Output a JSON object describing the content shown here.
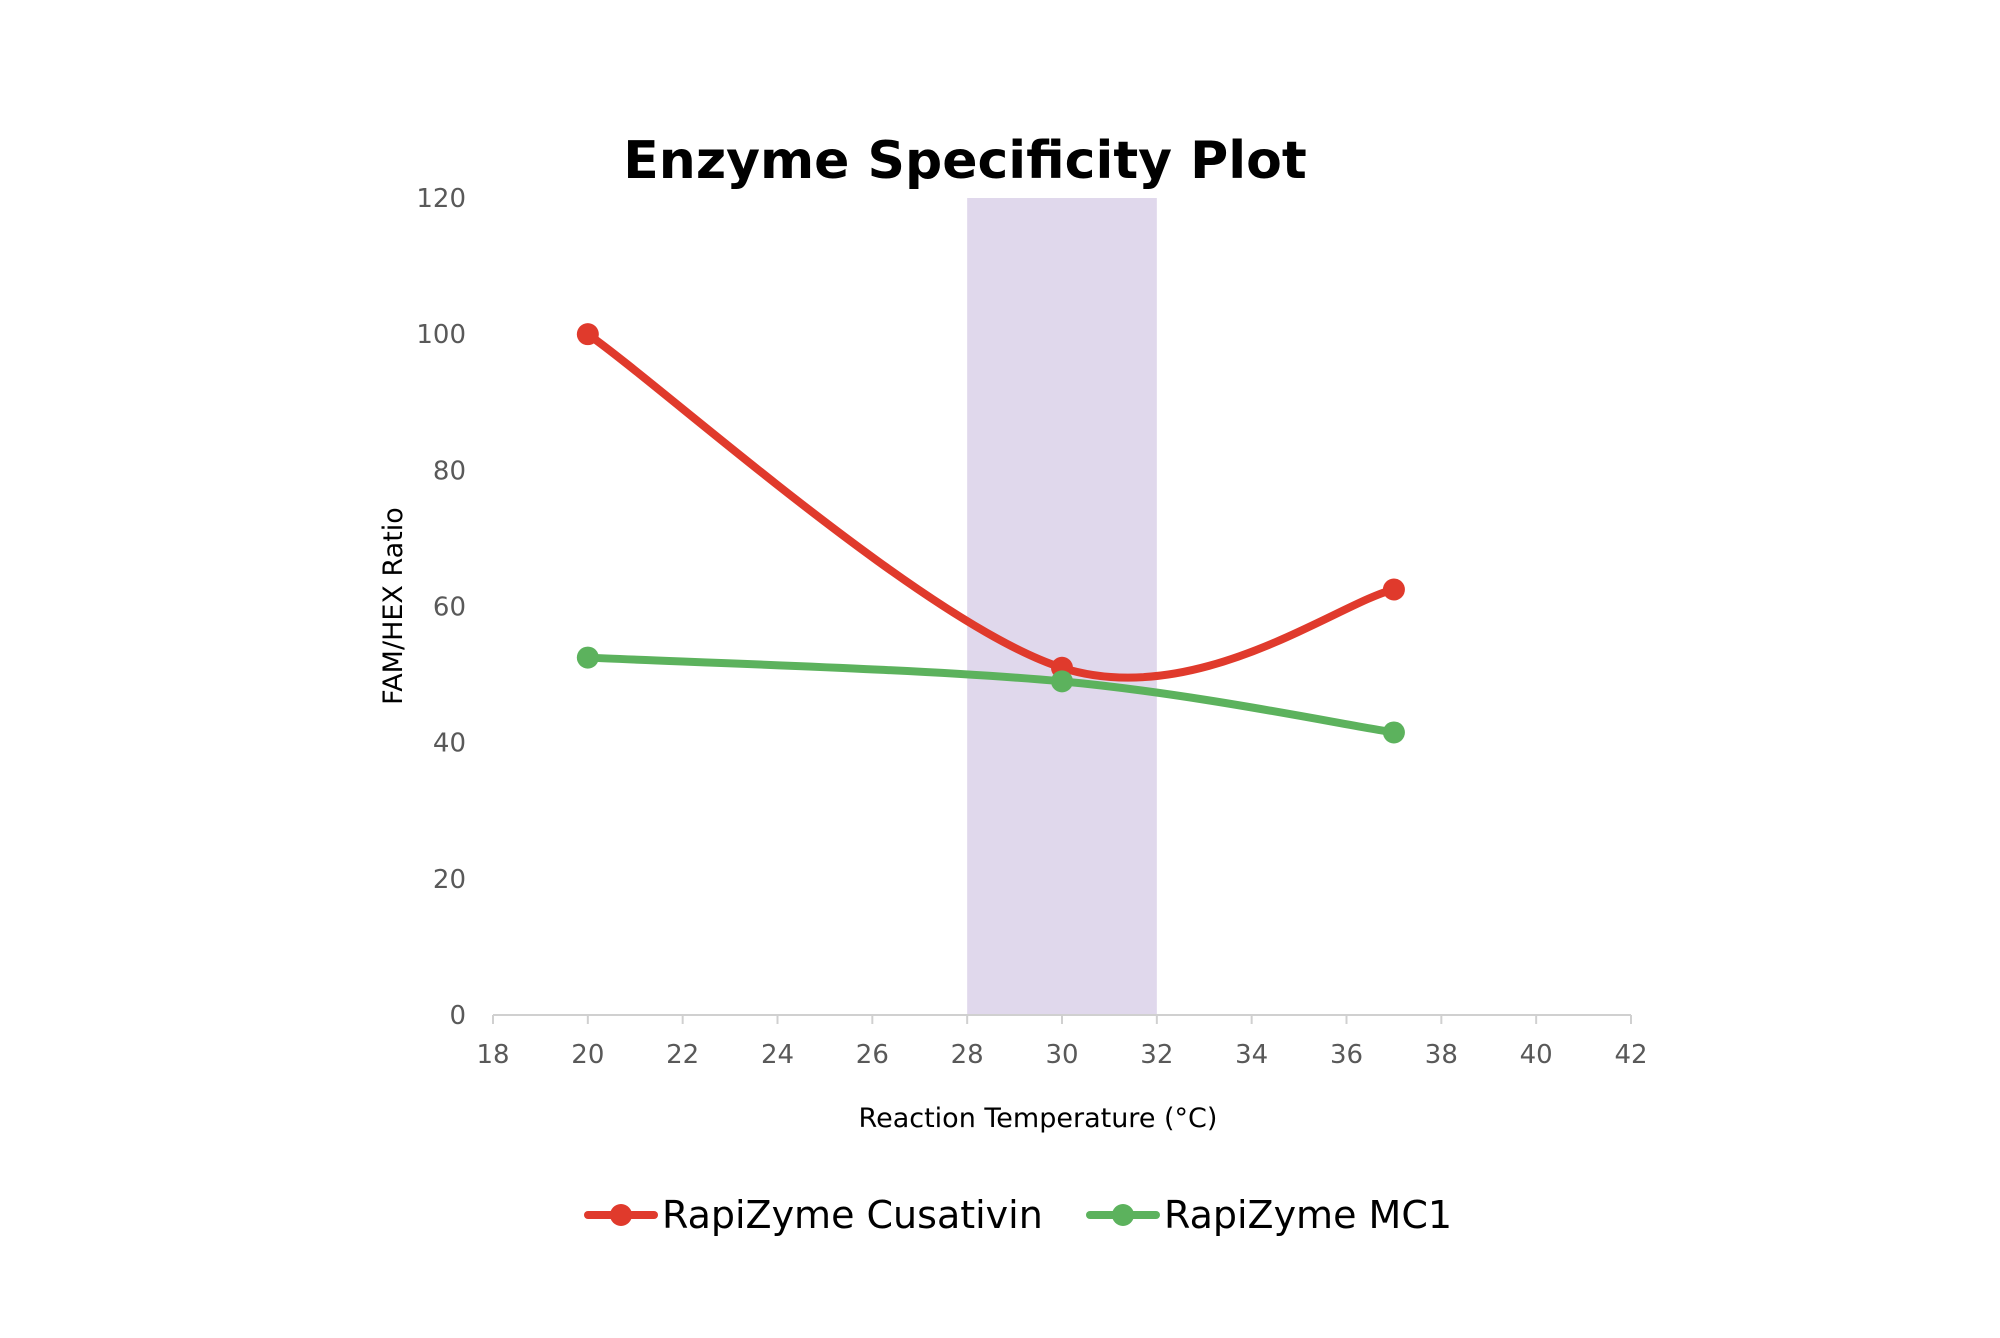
{
  "chart_data": {
    "type": "line",
    "title": "Enzyme Specificity Plot",
    "xlabel": "Reaction Temperature (°C)",
    "ylabel": "FAM/HEX Ratio",
    "xlim": [
      18,
      42
    ],
    "ylim": [
      0,
      120
    ],
    "x_ticks": [
      "18",
      "20",
      "22",
      "24",
      "26",
      "28",
      "30",
      "32",
      "34",
      "36",
      "38",
      "40",
      "42"
    ],
    "y_ticks": [
      "0",
      "20",
      "40",
      "60",
      "80",
      "100",
      "120"
    ],
    "shaded_region": {
      "x_start": 28,
      "x_end": 32,
      "color": "#e0d8ec"
    },
    "grid": false,
    "smooth_lines": true,
    "legend_position": "bottom",
    "series": [
      {
        "name": "RapiZyme Cusativin",
        "color": "#e03a2c",
        "x": [
          20,
          30,
          37
        ],
        "y": [
          100,
          51,
          62.5
        ]
      },
      {
        "name": "RapiZyme MC1",
        "color": "#5cb25d",
        "x": [
          20,
          30,
          37
        ],
        "y": [
          52.5,
          49,
          41.5
        ]
      }
    ]
  }
}
